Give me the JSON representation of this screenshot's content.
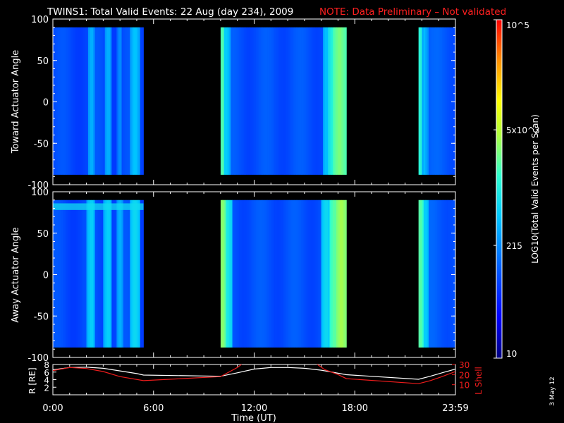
{
  "title": {
    "main": "TWINS1: Total Valid Events: 22 Aug (day 234), 2009",
    "note": "NOTE: Data Preliminary – Not validated"
  },
  "colors": {
    "background": "#000000",
    "axes": "#ffffff",
    "note": "#ff2020",
    "lshell": "#ee1c1c",
    "radius": "#ffffff",
    "colormap": [
      "#000080",
      "#0000ff",
      "#0060ff",
      "#00c8ff",
      "#30ffd0",
      "#b0ff40",
      "#ffff00",
      "#ff9000",
      "#ff0000"
    ]
  },
  "colorbar": {
    "label": "LOG10(Total Valid Events per Scan)",
    "ticks": [
      "10",
      "215",
      "5x10^3",
      "10^5"
    ],
    "tick_values": [
      10,
      215,
      5000,
      100000
    ]
  },
  "date_stamp": "3 May 12",
  "chart_data": [
    {
      "type": "heatmap",
      "name": "toward",
      "ylabel": "Toward Actuator Angle",
      "ylim": [
        -100,
        100
      ],
      "yticks": [
        100,
        50,
        0,
        -50,
        -100
      ],
      "xlim_hours": [
        0,
        24
      ],
      "angle_range": [
        -88,
        90
      ],
      "segments": [
        {
          "start": 0.0,
          "end": 5.4,
          "base": 0.22,
          "stripes": [
            {
              "t": 2.3,
              "w": 0.2,
              "v": 0.36
            },
            {
              "t": 3.3,
              "w": 0.2,
              "v": 0.36
            },
            {
              "t": 4.0,
              "w": 0.15,
              "v": 0.32
            },
            {
              "t": 4.9,
              "w": 0.3,
              "v": 0.38
            }
          ]
        },
        {
          "start": 10.0,
          "end": 17.5,
          "base": 0.23,
          "stripes": [
            {
              "t": 10.1,
              "w": 0.15,
              "v": 0.55
            },
            {
              "t": 10.3,
              "w": 0.25,
              "v": 0.4
            },
            {
              "t": 16.3,
              "w": 0.2,
              "v": 0.38
            },
            {
              "t": 16.7,
              "w": 0.3,
              "v": 0.48
            },
            {
              "t": 17.1,
              "w": 0.4,
              "v": 0.58
            }
          ]
        },
        {
          "start": 21.8,
          "end": 24.0,
          "base": 0.24,
          "stripes": [
            {
              "t": 21.9,
              "w": 0.15,
              "v": 0.5
            },
            {
              "t": 22.15,
              "w": 0.25,
              "v": 0.36
            }
          ]
        }
      ]
    },
    {
      "type": "heatmap",
      "name": "away",
      "ylabel": "Away Actuator Angle",
      "ylim": [
        -100,
        100
      ],
      "yticks": [
        100,
        50,
        0,
        -50,
        -100
      ],
      "xlim_hours": [
        0,
        24
      ],
      "angle_range": [
        -88,
        90
      ],
      "band": {
        "angle_top": 86,
        "angle_bottom": 78,
        "hours": [
          0,
          5.4
        ],
        "v": 0.42
      },
      "segments": [
        {
          "start": 0.0,
          "end": 5.4,
          "base": 0.22,
          "stripes": [
            {
              "t": 2.3,
              "w": 0.25,
              "v": 0.4
            },
            {
              "t": 3.3,
              "w": 0.25,
              "v": 0.4
            },
            {
              "t": 4.0,
              "w": 0.2,
              "v": 0.36
            },
            {
              "t": 4.9,
              "w": 0.3,
              "v": 0.42
            }
          ]
        },
        {
          "start": 10.0,
          "end": 17.5,
          "base": 0.23,
          "stripes": [
            {
              "t": 10.1,
              "w": 0.2,
              "v": 0.6
            },
            {
              "t": 10.35,
              "w": 0.3,
              "v": 0.46
            },
            {
              "t": 16.3,
              "w": 0.3,
              "v": 0.42
            },
            {
              "t": 16.8,
              "w": 0.3,
              "v": 0.55
            },
            {
              "t": 17.2,
              "w": 0.35,
              "v": 0.62
            }
          ]
        },
        {
          "start": 21.8,
          "end": 24.0,
          "base": 0.24,
          "stripes": [
            {
              "t": 21.9,
              "w": 0.2,
              "v": 0.55
            },
            {
              "t": 22.2,
              "w": 0.25,
              "v": 0.4
            }
          ]
        }
      ]
    },
    {
      "type": "line",
      "name": "orbit",
      "ylabel_left": "R [RE]",
      "ylabel_right": "L Shell",
      "ylim_left": [
        0,
        8
      ],
      "yticks_left": [
        2,
        4,
        6,
        8
      ],
      "ylim_right": [
        0,
        30
      ],
      "yticks_right": [
        10,
        20,
        30
      ],
      "xlabel": "Time (UT)",
      "xticks": [
        "0:00",
        "6:00",
        "12:00",
        "18:00",
        "23:59"
      ],
      "xtick_hours": [
        0,
        6,
        12,
        18,
        24
      ],
      "series": [
        {
          "name": "R [RE]",
          "axis": "left",
          "color": "#ffffff",
          "x": [
            0,
            1,
            2,
            3,
            4,
            5,
            5.4,
            10,
            11,
            12,
            13,
            14,
            15,
            16,
            17,
            17.5,
            21.8,
            22.5,
            23.2,
            24
          ],
          "y": [
            6.6,
            7.2,
            7.3,
            7.0,
            6.3,
            5.6,
            5.2,
            4.9,
            5.8,
            6.8,
            7.2,
            7.2,
            7.0,
            6.5,
            5.7,
            5.3,
            4.1,
            4.9,
            5.8,
            6.8
          ]
        },
        {
          "name": "L Shell",
          "axis": "right",
          "color": "#ee1c1c",
          "x": [
            0,
            1,
            2,
            3,
            4,
            5.4,
            10,
            11,
            11.4,
            15.6,
            16.2,
            17,
            17.5,
            21.8,
            22.5,
            23.2,
            24
          ],
          "y": [
            24,
            27,
            26,
            23,
            18,
            14,
            18,
            27,
            32,
            32,
            25,
            20,
            16,
            11,
            14,
            18,
            23
          ]
        }
      ]
    }
  ]
}
